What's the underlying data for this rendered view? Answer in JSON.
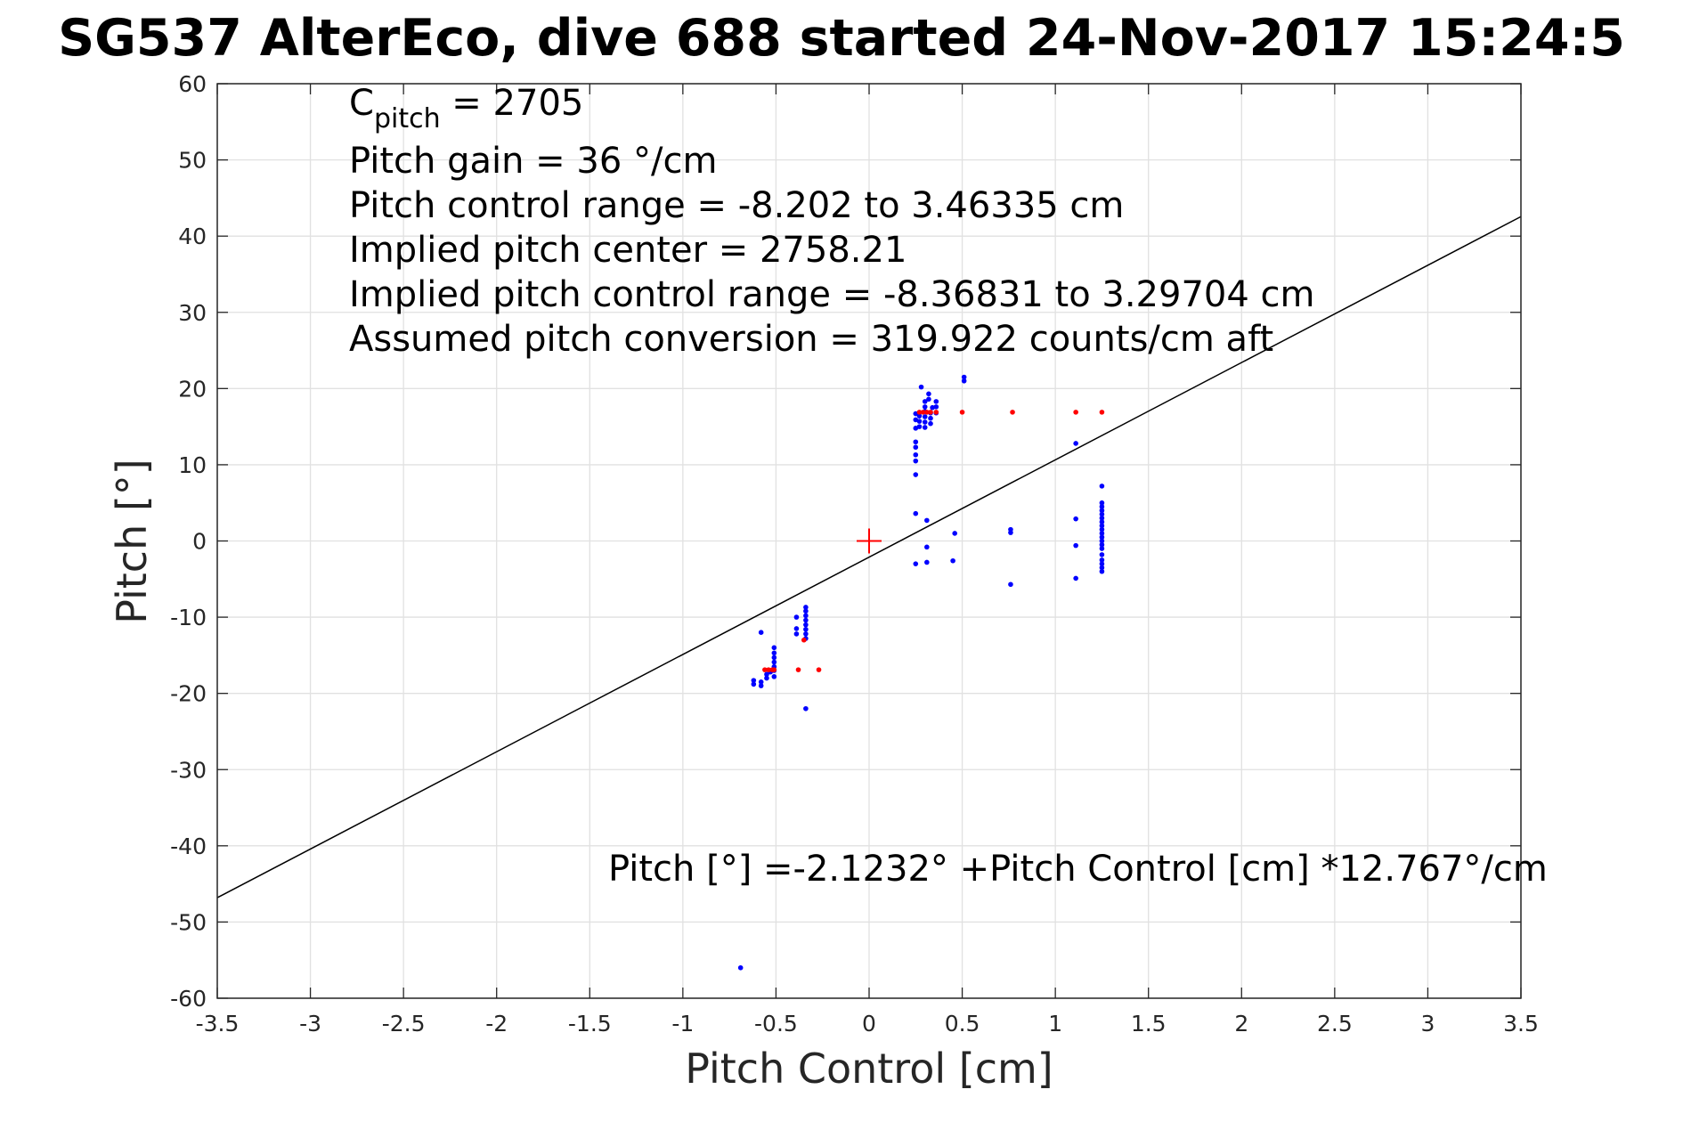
{
  "chart_data": {
    "type": "scatter",
    "title": "SG537 AlterEco, dive 688 started 24-Nov-2017 15:24:5",
    "xlabel": "Pitch Control [cm]",
    "ylabel": "Pitch [°]",
    "xlim": [
      -3.5,
      3.5
    ],
    "ylim": [
      -60,
      60
    ],
    "grid": true,
    "x_ticks": [
      -3.5,
      -3,
      -2.5,
      -2,
      -1.5,
      -1,
      -0.5,
      0,
      0.5,
      1,
      1.5,
      2,
      2.5,
      3,
      3.5
    ],
    "x_tick_labels": [
      "-3.5",
      "-3",
      "-2.5",
      "-2",
      "-1.5",
      "-1",
      "-0.5",
      "0",
      "0.5",
      "1",
      "1.5",
      "2",
      "2.5",
      "3",
      "3.5"
    ],
    "y_ticks": [
      -60,
      -50,
      -40,
      -30,
      -20,
      -10,
      0,
      10,
      20,
      30,
      40,
      50,
      60
    ],
    "y_tick_labels": [
      "-60",
      "-50",
      "-40",
      "-30",
      "-20",
      "-10",
      "0",
      "10",
      "20",
      "30",
      "40",
      "50",
      "60"
    ],
    "annotation_lines": [
      {
        "main": "C",
        "sub": "pitch",
        "rest": " = 2705"
      },
      {
        "main": "Pitch gain = 36 °/cm"
      },
      {
        "main": "Pitch control range = -8.202 to 3.46335 cm"
      },
      {
        "main": "Implied pitch center = 2758.21"
      },
      {
        "main": "Implied pitch control range = -8.36831 to 3.29704 cm"
      },
      {
        "main": "Assumed pitch conversion = 319.922 counts/cm aft"
      }
    ],
    "fit_label": "Pitch [°] =-2.1232° +Pitch Control [cm] *12.767°/cm",
    "fit_line": {
      "intercept": -2.1232,
      "slope": 12.767,
      "color": "#000000"
    },
    "center_marker": {
      "x": 0,
      "y": 0,
      "color": "#ff0000"
    },
    "series": [
      {
        "color": "#0000ff",
        "points": [
          [
            -0.69,
            -56
          ],
          [
            -0.62,
            -18.3
          ],
          [
            -0.62,
            -18.8
          ],
          [
            -0.58,
            -18.5
          ],
          [
            -0.58,
            -19.0
          ],
          [
            -0.58,
            -12
          ],
          [
            -0.55,
            -17.5
          ],
          [
            -0.55,
            -18.0
          ],
          [
            -0.53,
            -17.2
          ],
          [
            -0.51,
            -14
          ],
          [
            -0.51,
            -14.7
          ],
          [
            -0.51,
            -15.3
          ],
          [
            -0.51,
            -15.9
          ],
          [
            -0.51,
            -16.5
          ],
          [
            -0.51,
            -17.0
          ],
          [
            -0.51,
            -17.8
          ],
          [
            -0.39,
            -10
          ],
          [
            -0.39,
            -11.5
          ],
          [
            -0.39,
            -12.2
          ],
          [
            -0.34,
            -8.7
          ],
          [
            -0.34,
            -9.2
          ],
          [
            -0.34,
            -9.8
          ],
          [
            -0.34,
            -10.4
          ],
          [
            -0.34,
            -11
          ],
          [
            -0.34,
            -11.6
          ],
          [
            -0.34,
            -12.2
          ],
          [
            -0.34,
            -12.8
          ],
          [
            -0.34,
            -22
          ],
          [
            0.25,
            8.7
          ],
          [
            0.25,
            10.5
          ],
          [
            0.25,
            11.3
          ],
          [
            0.25,
            12.3
          ],
          [
            0.25,
            13.0
          ],
          [
            0.25,
            14.8
          ],
          [
            0.25,
            15.9
          ],
          [
            0.25,
            16.7
          ],
          [
            0.25,
            3.6
          ],
          [
            0.25,
            -3.0
          ],
          [
            0.27,
            15.0
          ],
          [
            0.27,
            15.7
          ],
          [
            0.27,
            16.4
          ],
          [
            0.28,
            20.2
          ],
          [
            0.3,
            14.9
          ],
          [
            0.3,
            15.6
          ],
          [
            0.3,
            16.3
          ],
          [
            0.3,
            17.0
          ],
          [
            0.3,
            17.6
          ],
          [
            0.3,
            18.3
          ],
          [
            0.31,
            2.7
          ],
          [
            0.31,
            -0.8
          ],
          [
            0.31,
            -2.8
          ],
          [
            0.32,
            18.6
          ],
          [
            0.32,
            19.3
          ],
          [
            0.33,
            15.4
          ],
          [
            0.33,
            16.1
          ],
          [
            0.33,
            16.8
          ],
          [
            0.34,
            17.5
          ],
          [
            0.36,
            16.8
          ],
          [
            0.36,
            17.6
          ],
          [
            0.36,
            18.3
          ],
          [
            0.45,
            -2.6
          ],
          [
            0.46,
            1.0
          ],
          [
            0.51,
            21.0
          ],
          [
            0.51,
            21.5
          ],
          [
            0.76,
            1.5
          ],
          [
            0.76,
            1.1
          ],
          [
            0.76,
            -5.7
          ],
          [
            1.11,
            12.8
          ],
          [
            1.11,
            2.9
          ],
          [
            1.11,
            -0.6
          ],
          [
            1.11,
            -4.9
          ],
          [
            1.25,
            7.2
          ],
          [
            1.25,
            5.0
          ],
          [
            1.25,
            4.5
          ],
          [
            1.25,
            4.0
          ],
          [
            1.25,
            3.5
          ],
          [
            1.25,
            3.0
          ],
          [
            1.25,
            2.5
          ],
          [
            1.25,
            2.0
          ],
          [
            1.25,
            1.5
          ],
          [
            1.25,
            1.0
          ],
          [
            1.25,
            0.5
          ],
          [
            1.25,
            0.0
          ],
          [
            1.25,
            -0.5
          ],
          [
            1.25,
            -1.0
          ],
          [
            1.25,
            -1.8
          ],
          [
            1.25,
            -2.5
          ],
          [
            1.25,
            -3.0
          ],
          [
            1.25,
            -3.5
          ],
          [
            1.25,
            -4.0
          ]
        ]
      },
      {
        "color": "#ff0000",
        "points": [
          [
            -0.56,
            -16.9
          ],
          [
            -0.54,
            -16.9
          ],
          [
            -0.52,
            -16.9
          ],
          [
            -0.51,
            -16.9
          ],
          [
            -0.38,
            -16.9
          ],
          [
            -0.35,
            -13.0
          ],
          [
            -0.27,
            -16.9
          ],
          [
            0.27,
            16.9
          ],
          [
            0.29,
            16.9
          ],
          [
            0.31,
            16.9
          ],
          [
            0.33,
            16.9
          ],
          [
            0.36,
            16.9
          ],
          [
            0.5,
            16.9
          ],
          [
            0.77,
            16.9
          ],
          [
            1.11,
            16.9
          ],
          [
            1.25,
            16.9
          ]
        ]
      }
    ]
  }
}
